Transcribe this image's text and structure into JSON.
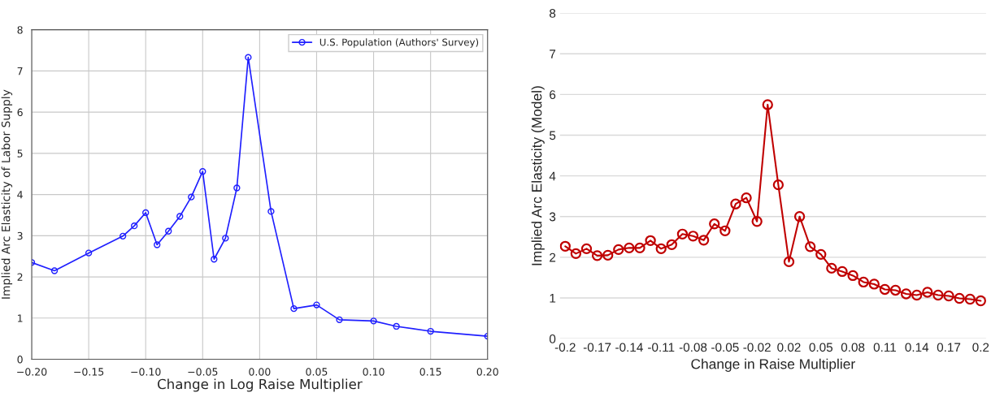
{
  "chart_data": [
    {
      "type": "line",
      "xlabel": "Change in Log Raise Multiplier",
      "ylabel": "Implied Arc Elasticity of Labor Supply",
      "x": [
        -0.2,
        -0.18,
        -0.15,
        -0.12,
        -0.11,
        -0.1,
        -0.09,
        -0.08,
        -0.07,
        -0.06,
        -0.05,
        -0.04,
        -0.03,
        -0.02,
        -0.01,
        0.01,
        0.03,
        0.05,
        0.07,
        0.1,
        0.12,
        0.15,
        0.2
      ],
      "series": [
        {
          "name": "U.S. Population (Authors' Survey)",
          "color": "#1f1fff",
          "values": [
            2.35,
            2.15,
            2.58,
            2.99,
            3.24,
            3.56,
            2.78,
            3.11,
            3.47,
            3.94,
            4.56,
            2.43,
            2.94,
            4.16,
            7.33,
            3.59,
            1.23,
            1.32,
            0.96,
            0.93,
            0.8,
            0.68,
            0.56
          ]
        }
      ],
      "xlim": [
        -0.2,
        0.2
      ],
      "ylim": [
        0,
        8
      ],
      "xticks": [
        {
          "value": -0.2,
          "label": "−0.20"
        },
        {
          "value": -0.15,
          "label": "−0.15"
        },
        {
          "value": -0.1,
          "label": "−0.10"
        },
        {
          "value": -0.05,
          "label": "−0.05"
        },
        {
          "value": 0,
          "label": "0.00"
        },
        {
          "value": 0.05,
          "label": "0.05"
        },
        {
          "value": 0.1,
          "label": "0.10"
        },
        {
          "value": 0.15,
          "label": "0.15"
        },
        {
          "value": 0.2,
          "label": "0.20"
        }
      ],
      "yticks": [
        0,
        1,
        2,
        3,
        4,
        5,
        6,
        7,
        8
      ],
      "grid": true,
      "legend": "top right",
      "marker": "circle"
    },
    {
      "type": "line",
      "xlabel": "Change in Raise Multiplier",
      "ylabel": "Implied Arc Elasticity (Model)",
      "categories": [
        "-0.2",
        null,
        null,
        "-0.17",
        null,
        null,
        "-0.14",
        null,
        null,
        "-0.11",
        null,
        null,
        "-0.08",
        null,
        null,
        "-0.05",
        null,
        null,
        "-0.02",
        null,
        null,
        "0.02",
        null,
        null,
        "0.05",
        null,
        null,
        "0.08",
        null,
        null,
        "0.11",
        null,
        null,
        "0.14",
        null,
        null,
        "0.17",
        null,
        null,
        "0.2"
      ],
      "series": [
        {
          "color": "#c00000",
          "values": [
            2.27,
            2.09,
            2.21,
            2.04,
            2.05,
            2.19,
            2.23,
            2.23,
            2.41,
            2.21,
            2.31,
            2.57,
            2.52,
            2.42,
            2.82,
            2.65,
            3.31,
            3.46,
            2.88,
            5.75,
            3.78,
            1.89,
            3.0,
            2.26,
            2.07,
            1.73,
            1.65,
            1.55,
            1.39,
            1.34,
            1.21,
            1.19,
            1.1,
            1.07,
            1.14,
            1.07,
            1.05,
            0.99,
            0.97,
            0.93
          ]
        }
      ],
      "ylim": [
        0,
        8
      ],
      "yticks": [
        0,
        1,
        2,
        3,
        4,
        5,
        6,
        7,
        8
      ],
      "grid": "y",
      "marker": "circle"
    }
  ]
}
